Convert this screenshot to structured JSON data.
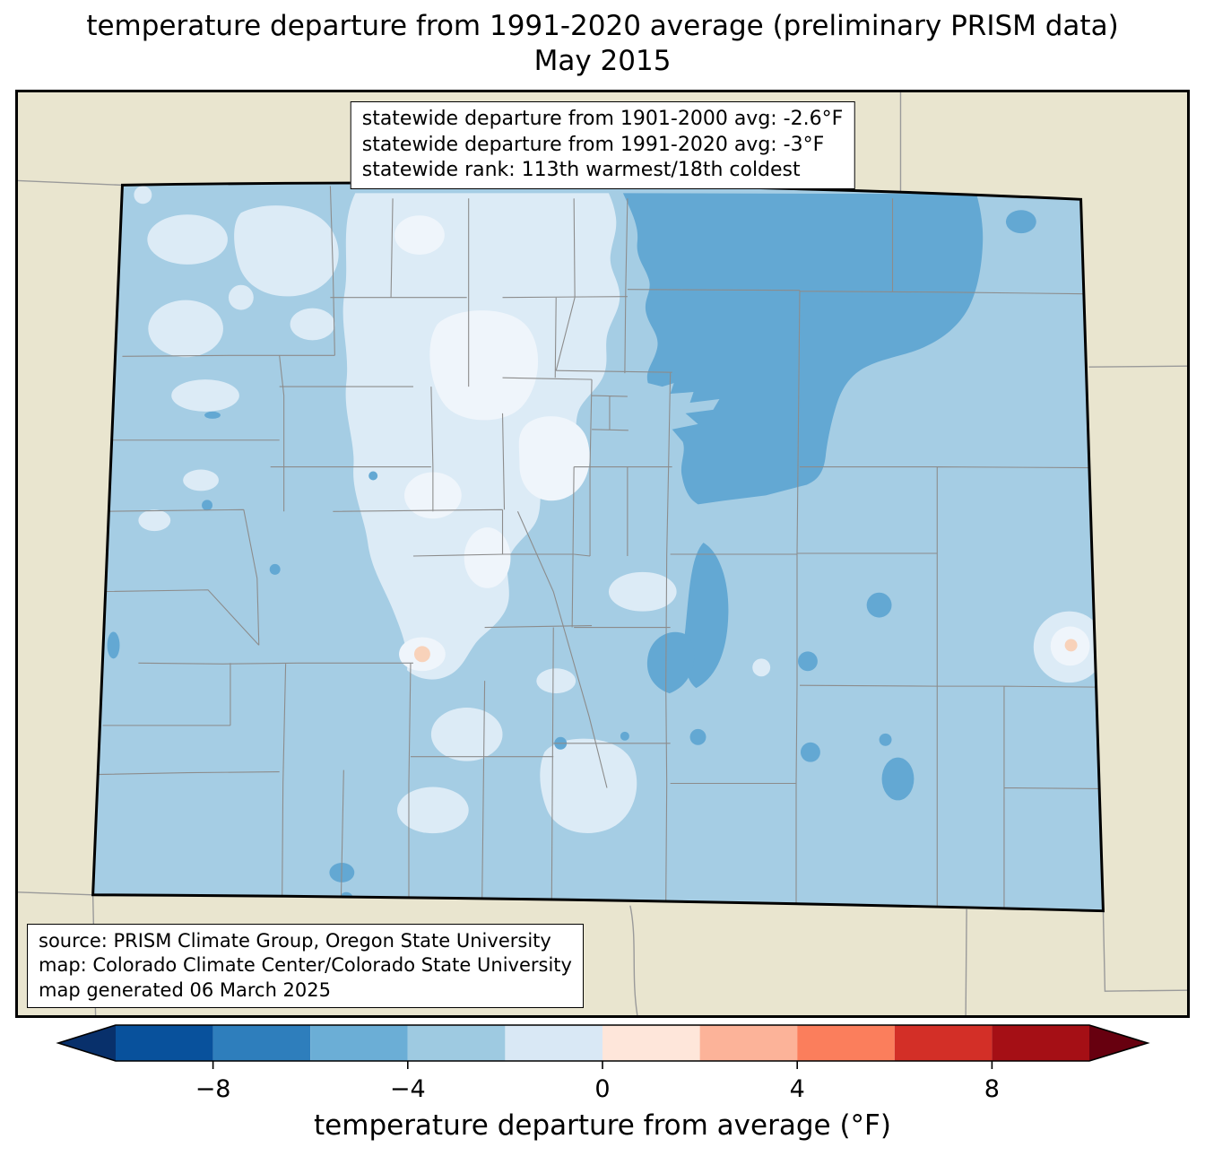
{
  "title": {
    "line1": "temperature departure from 1991-2020 average (preliminary PRISM data)",
    "line2": "May 2015"
  },
  "stats_box": {
    "lines": [
      "statewide departure from 1901-2000 avg: -2.6°F",
      "statewide departure from 1991-2020 avg: -3°F",
      "statewide rank: 113th warmest/18th coldest"
    ]
  },
  "source_box": {
    "lines": [
      "source: PRISM Climate Group, Oregon State University",
      "map: Colorado Climate Center/Colorado State University",
      "map generated 06 March 2025"
    ]
  },
  "colorbar": {
    "label": "temperature departure from average (°F)",
    "min": -10,
    "max": 10,
    "ticks": [
      {
        "value": -8,
        "label": "−8"
      },
      {
        "value": -4,
        "label": "−4"
      },
      {
        "value": 0,
        "label": "0"
      },
      {
        "value": 4,
        "label": "4"
      },
      {
        "value": 8,
        "label": "8"
      }
    ],
    "segments": [
      {
        "from": -10,
        "to": -8,
        "color": "#08519c"
      },
      {
        "from": -8,
        "to": -6,
        "color": "#2e7ebc"
      },
      {
        "from": -6,
        "to": -4,
        "color": "#6baed6"
      },
      {
        "from": -4,
        "to": -2,
        "color": "#9ecae1"
      },
      {
        "from": -2,
        "to": 0,
        "color": "#d9e8f5"
      },
      {
        "from": 0,
        "to": 2,
        "color": "#fee6da"
      },
      {
        "from": 2,
        "to": 4,
        "color": "#fcb399"
      },
      {
        "from": 4,
        "to": 6,
        "color": "#fb7e5c"
      },
      {
        "from": 6,
        "to": 8,
        "color": "#d32f27"
      },
      {
        "from": 8,
        "to": 10,
        "color": "#a50f15"
      }
    ],
    "left_arrow_color": "#08306b",
    "right_arrow_color": "#67000f"
  },
  "palette": {
    "background_land": "#e9e5cf",
    "base_fill": "#a5cde4",
    "pale_fill": "#dcebf6",
    "paler_fill": "#eff5fb",
    "dark_fill": "#63a8d3",
    "warm_dot": "#f8d2ba",
    "county_line": "#8c8c8c",
    "neighbor_line": "#9a9a9a"
  }
}
